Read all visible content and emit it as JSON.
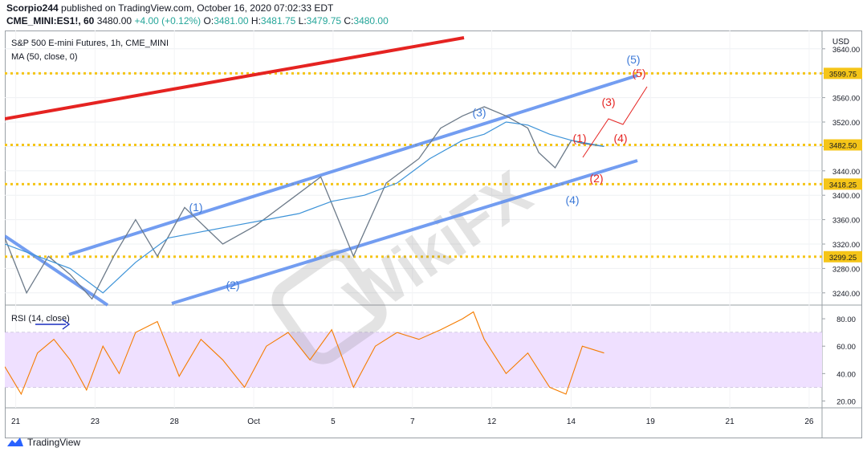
{
  "header": {
    "author": "Scorpio244",
    "published_text": "published on TradingView.com, October 16, 2020 07:02:33 EDT",
    "symbol": "CME_MINI:ES1!, 60",
    "price": "3480.00",
    "change": "+4.00 (+0.12%)",
    "ohlc": [
      {
        "label": "O:",
        "value": "3481.00"
      },
      {
        "label": "H:",
        "value": "3481.75"
      },
      {
        "label": "L:",
        "value": "3479.75"
      },
      {
        "label": "C:",
        "value": "3480.00"
      }
    ]
  },
  "chart_data": {
    "type": "line",
    "title": "S&P 500 E-mini Futures, 1h, CME_MINI",
    "indicator_label": "MA (50, close, 0)",
    "currency": "USD",
    "y_ticks": [
      "3640.00",
      "3600.00",
      "3560.00",
      "3520.00",
      "3480.00",
      "3440.00",
      "3400.00",
      "3360.00",
      "3320.00",
      "3280.00",
      "3240.00"
    ],
    "ylim": [
      3220,
      3670
    ],
    "price_labels": [
      "3599.75",
      "3482.50",
      "3418.25",
      "3299.25"
    ],
    "x_ticks": [
      "21",
      "23",
      "28",
      "Oct",
      "5",
      "7",
      "12",
      "14",
      "19",
      "21",
      "26"
    ],
    "series": [
      {
        "name": "S&P 500 E-mini Futures",
        "x": [
          0,
          4,
          8,
          12,
          16,
          20,
          24,
          28,
          33,
          40,
          46,
          52,
          58,
          64,
          70,
          76,
          80,
          84,
          88,
          92,
          96,
          98,
          101,
          104,
          106,
          110
        ],
        "values": [
          3330,
          3240,
          3300,
          3270,
          3230,
          3300,
          3360,
          3300,
          3380,
          3320,
          3350,
          3390,
          3430,
          3300,
          3420,
          3460,
          3510,
          3530,
          3545,
          3530,
          3510,
          3470,
          3445,
          3490,
          3485,
          3480
        ]
      },
      {
        "name": "MA (50, close, 0)",
        "x": [
          0,
          6,
          12,
          18,
          24,
          30,
          36,
          42,
          48,
          54,
          60,
          66,
          72,
          78,
          84,
          88,
          92,
          96,
          100,
          104,
          110
        ],
        "values": [
          3320,
          3300,
          3280,
          3240,
          3290,
          3330,
          3340,
          3350,
          3360,
          3370,
          3390,
          3400,
          3420,
          3460,
          3490,
          3500,
          3520,
          3515,
          3500,
          3490,
          3480
        ]
      }
    ],
    "rsi": {
      "label": "RSI (14, close)",
      "y_ticks": [
        "80.00",
        "60.00",
        "40.00",
        "20.00"
      ],
      "ylim": [
        15,
        90
      ],
      "band": [
        30,
        70
      ],
      "x": [
        0,
        3,
        6,
        9,
        12,
        15,
        18,
        21,
        24,
        28,
        32,
        36,
        40,
        44,
        48,
        52,
        56,
        60,
        64,
        68,
        72,
        76,
        80,
        84,
        86,
        88,
        92,
        96,
        100,
        103,
        106,
        110
      ],
      "values": [
        45,
        25,
        55,
        65,
        50,
        28,
        60,
        40,
        70,
        78,
        38,
        65,
        50,
        30,
        60,
        70,
        50,
        72,
        30,
        60,
        70,
        65,
        72,
        80,
        85,
        65,
        40,
        55,
        30,
        25,
        60,
        55
      ]
    },
    "xlim": [
      0,
      150
    ],
    "grid": true
  },
  "waves": {
    "blue": [
      "(1)",
      "(2)",
      "(3)",
      "(4)",
      "(5)"
    ],
    "red": [
      "(1)",
      "(2)",
      "(3)",
      "(4)",
      "(5)"
    ]
  },
  "watermark": "WikiFX",
  "footer": {
    "brand": "TradingView"
  },
  "colors": {
    "blue_line": "#5b8def",
    "red_line": "#e52321",
    "yellow": "#f5c518",
    "price": "#ef6c00",
    "ma": "#3d93d8",
    "rsi": "#f57c00",
    "rsi_band": "#efe0ff"
  }
}
